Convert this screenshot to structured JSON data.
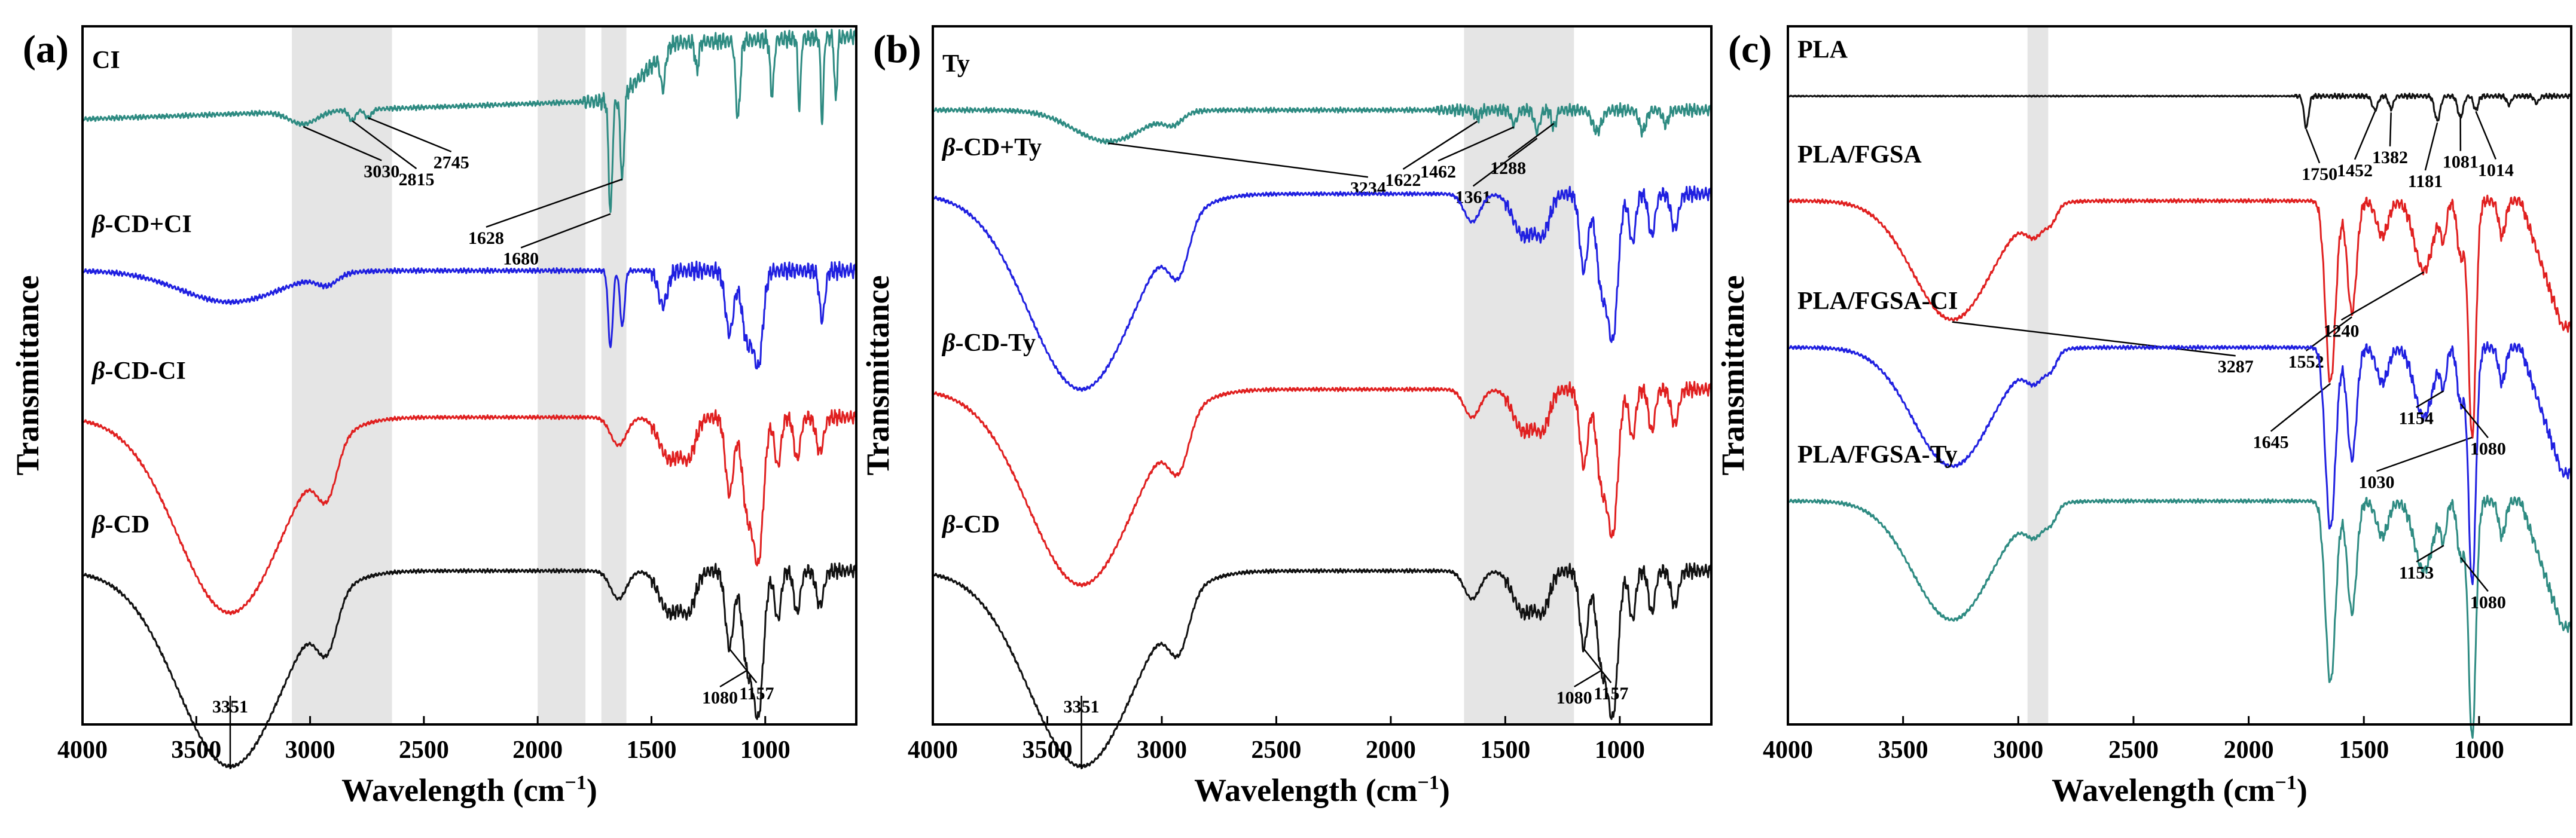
{
  "chart_data": [
    {
      "type": "line",
      "panel": "(a)",
      "xlabel": "Wavelength (cm",
      "xlabel_sup": "−1",
      "xlabel_close": ")",
      "ylabel": "Transmittance",
      "xlim": [
        4000,
        600
      ],
      "xticks": [
        "4000",
        "3500",
        "3000",
        "2500",
        "2000",
        "1500",
        "1000"
      ],
      "shaded_bands": [
        [
          3080,
          2640
        ],
        [
          2000,
          1790
        ],
        [
          1720,
          1610
        ]
      ],
      "series": [
        {
          "label": "CI",
          "label_parts": [
            [
              "CI",
              ""
            ]
          ],
          "color": "#2e8b82",
          "baseline": 0.115,
          "profile": "cin",
          "peaks": [
            {
              "text": "3030",
              "wn": 3030
            },
            {
              "text": "2815",
              "wn": 2815
            },
            {
              "text": "2745",
              "wn": 2745
            },
            {
              "text": "1628",
              "wn": 1628
            },
            {
              "text": "1680",
              "wn": 1680
            }
          ]
        },
        {
          "label": "β-CD+CI",
          "label_parts": [
            [
              "β",
              "it"
            ],
            [
              "-CD+CI",
              ""
            ]
          ],
          "color": "#2020e0",
          "baseline": 0.35,
          "profile": "cd_ci",
          "peaks": []
        },
        {
          "label": "β-CD-CI",
          "label_parts": [
            [
              "β",
              "it"
            ],
            [
              "-CD-CI",
              ""
            ]
          ],
          "color": "#e02020",
          "baseline": 0.56,
          "profile": "cd",
          "peaks": []
        },
        {
          "label": "β-CD",
          "label_parts": [
            [
              "β",
              "it"
            ],
            [
              "-CD",
              ""
            ]
          ],
          "color": "#111111",
          "baseline": 0.78,
          "profile": "cd",
          "peaks": [
            {
              "text": "3351",
              "wn": 3351
            },
            {
              "text": "1157",
              "wn": 1157
            },
            {
              "text": "1080",
              "wn": 1080
            }
          ]
        }
      ]
    },
    {
      "type": "line",
      "panel": "(b)",
      "xlabel": "Wavelength (cm",
      "xlabel_sup": "−1",
      "xlabel_close": ")",
      "ylabel": "Transmittance",
      "xlim": [
        4000,
        600
      ],
      "xticks": [
        "4000",
        "3500",
        "3000",
        "2500",
        "2000",
        "1500",
        "1000"
      ],
      "shaded_bands": [
        [
          1680,
          1200
        ]
      ],
      "series": [
        {
          "label": "Ty",
          "label_parts": [
            [
              "Ty",
              ""
            ]
          ],
          "color": "#2e8b82",
          "baseline": 0.12,
          "profile": "ty",
          "peaks": [
            {
              "text": "3234",
              "wn": 3234
            },
            {
              "text": "1622",
              "wn": 1622
            },
            {
              "text": "1462",
              "wn": 1462
            },
            {
              "text": "1361",
              "wn": 1361
            },
            {
              "text": "1288",
              "wn": 1288
            }
          ]
        },
        {
          "label": "β-CD+Ty",
          "label_parts": [
            [
              "β",
              "it"
            ],
            [
              "-CD+Ty",
              ""
            ]
          ],
          "color": "#2020e0",
          "baseline": 0.24,
          "profile": "cd",
          "peaks": []
        },
        {
          "label": "β-CD-Ty",
          "label_parts": [
            [
              "β",
              "it"
            ],
            [
              "-CD-Ty",
              ""
            ]
          ],
          "color": "#e02020",
          "baseline": 0.52,
          "profile": "cd",
          "peaks": []
        },
        {
          "label": "β-CD",
          "label_parts": [
            [
              "β",
              "it"
            ],
            [
              "-CD",
              ""
            ]
          ],
          "color": "#111111",
          "baseline": 0.78,
          "profile": "cd",
          "peaks": [
            {
              "text": "3351",
              "wn": 3351
            },
            {
              "text": "1157",
              "wn": 1157
            },
            {
              "text": "1080",
              "wn": 1080
            }
          ]
        }
      ]
    },
    {
      "type": "line",
      "panel": "(c)",
      "xlabel": "Wavelength (cm",
      "xlabel_sup": "−1",
      "xlabel_close": ")",
      "ylabel": "Transmittance",
      "xlim": [
        4000,
        600
      ],
      "xticks": [
        "4000",
        "3500",
        "3000",
        "2500",
        "2000",
        "1500",
        "1000"
      ],
      "shaded_bands": [
        [
          2960,
          2870
        ]
      ],
      "series": [
        {
          "label": "PLA",
          "label_parts": [
            [
              "PLA",
              ""
            ]
          ],
          "color": "#111111",
          "baseline": 0.1,
          "profile": "pla",
          "peaks": [
            {
              "text": "1750",
              "wn": 1750
            },
            {
              "text": "1452",
              "wn": 1452
            },
            {
              "text": "1382",
              "wn": 1382
            },
            {
              "text": "1181",
              "wn": 1181
            },
            {
              "text": "1081",
              "wn": 1081
            },
            {
              "text": "1014",
              "wn": 1014
            }
          ]
        },
        {
          "label": "PLA/FGSA",
          "label_parts": [
            [
              "PLA/FGSA",
              ""
            ]
          ],
          "color": "#e02020",
          "baseline": 0.25,
          "profile": "fgsa",
          "peaks": [
            {
              "text": "3287",
              "wn": 3287
            },
            {
              "text": "1645",
              "wn": 1645
            },
            {
              "text": "1552",
              "wn": 1552
            },
            {
              "text": "1240",
              "wn": 1240
            },
            {
              "text": "1030",
              "wn": 1030
            }
          ]
        },
        {
          "label": "PLA/FGSA-CI",
          "label_parts": [
            [
              "PLA/FGSA-CI",
              ""
            ]
          ],
          "color": "#2020e0",
          "baseline": 0.46,
          "profile": "fgsa",
          "peaks": [
            {
              "text": "1154",
              "wn": 1154
            },
            {
              "text": "1080",
              "wn": 1080
            }
          ]
        },
        {
          "label": "PLA/FGSA-Ty",
          "label_parts": [
            [
              "PLA/FGSA-Ty",
              ""
            ]
          ],
          "color": "#2e8b82",
          "baseline": 0.68,
          "profile": "fgsa",
          "peaks": [
            {
              "text": "1153",
              "wn": 1153
            },
            {
              "text": "1080",
              "wn": 1080
            }
          ]
        }
      ]
    }
  ]
}
